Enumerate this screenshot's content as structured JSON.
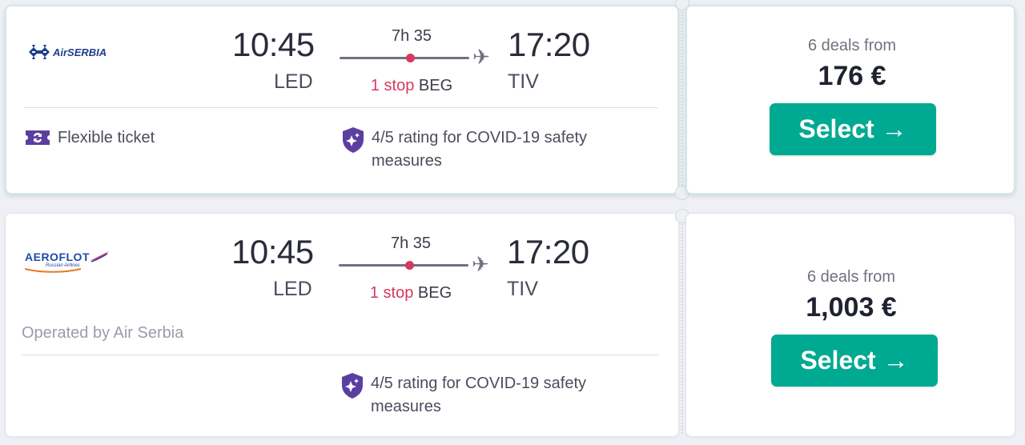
{
  "results": [
    {
      "airline": "AirSERBIA",
      "airline_logo_icon": "air-serbia-logo",
      "depart_time": "10:45",
      "depart_code": "LED",
      "duration": "7h 35",
      "stops_label": "1 stop",
      "stop_code": "BEG",
      "arrive_time": "17:20",
      "arrive_code": "TIV",
      "flexible_label": "Flexible ticket",
      "covid_line1": "4/5 rating for COVID-19 safety",
      "covid_line2": "measures",
      "deals_label": "6 deals from",
      "price": "176 €",
      "select_label": "Select →"
    },
    {
      "airline": "AEROFLOT",
      "airline_sub": "Russian Airlines",
      "airline_logo_icon": "aeroflot-logo",
      "depart_time": "10:45",
      "depart_code": "LED",
      "duration": "7h 35",
      "stops_label": "1 stop",
      "stop_code": "BEG",
      "arrive_time": "17:20",
      "arrive_code": "TIV",
      "operated_by": "Operated by Air Serbia",
      "covid_line1": "4/5 rating for COVID-19 safety",
      "covid_line2": "measures",
      "deals_label": "6 deals from",
      "price": "1,003 €",
      "select_label": "Select →"
    }
  ],
  "colors": {
    "accent": "#00a991",
    "stop_red": "#d7385e",
    "badge_purple": "#5b3fa0",
    "serbia_blue": "#1e3e8c",
    "aeroflot_blue": "#1f4aa8",
    "aeroflot_orange": "#e87722"
  }
}
